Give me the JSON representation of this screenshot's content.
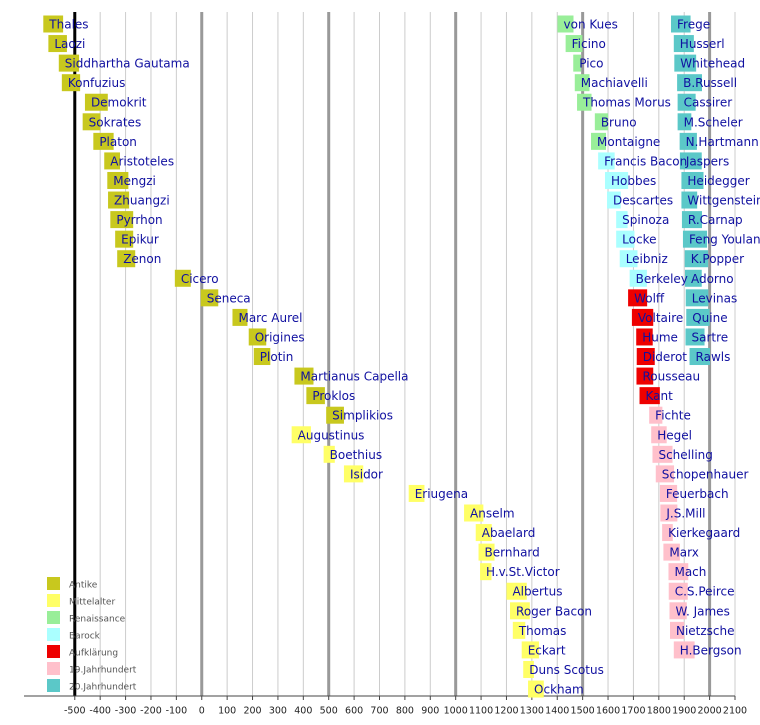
{
  "chart_data": {
    "type": "timeline",
    "xlim": [
      -700,
      2100
    ],
    "xticks": [
      -500,
      -400,
      -300,
      -200,
      -100,
      0,
      100,
      200,
      300,
      400,
      500,
      600,
      700,
      800,
      900,
      1000,
      1100,
      1200,
      1300,
      1400,
      1500,
      1600,
      1700,
      1800,
      1900,
      2000,
      2100
    ],
    "grid": true,
    "legend": "lower left",
    "eras": [
      {
        "name": "Antike",
        "color": "#c8c81e"
      },
      {
        "name": "Mittelalter",
        "color": "#ffff66"
      },
      {
        "name": "Renaissance",
        "color": "#99ee99"
      },
      {
        "name": "Barock",
        "color": "#aaffff"
      },
      {
        "name": "Aufklärung",
        "color": "#ee0000"
      },
      {
        "name": "19.Jahrhundert",
        "color": "#ffc0cb"
      },
      {
        "name": "20.Jahrhundert",
        "color": "#5bc8c8"
      }
    ],
    "rows": [
      [
        {
          "label": "Thales",
          "start": -624,
          "end": -546,
          "era": "Antike"
        },
        {
          "label": "von Kues",
          "start": 1401,
          "end": 1464,
          "era": "Renaissance"
        },
        {
          "label": "Frege",
          "start": 1848,
          "end": 1925,
          "era": "20.Jahrhundert"
        }
      ],
      [
        {
          "label": "Laozi",
          "start": -604,
          "end": -531,
          "era": "Antike"
        },
        {
          "label": "Ficino",
          "start": 1433,
          "end": 1499,
          "era": "Renaissance"
        },
        {
          "label": "Husserl",
          "start": 1859,
          "end": 1938,
          "era": "20.Jahrhundert"
        }
      ],
      [
        {
          "label": "Siddhartha Gautama",
          "start": -563,
          "end": -483,
          "era": "Antike"
        },
        {
          "label": "Pico",
          "start": 1463,
          "end": 1494,
          "era": "Renaissance"
        },
        {
          "label": "Whitehead",
          "start": 1861,
          "end": 1947,
          "era": "20.Jahrhundert"
        }
      ],
      [
        {
          "label": "Konfuzius",
          "start": -551,
          "end": -479,
          "era": "Antike"
        },
        {
          "label": "Machiavelli",
          "start": 1469,
          "end": 1527,
          "era": "Renaissance"
        },
        {
          "label": "B.Russell",
          "start": 1872,
          "end": 1970,
          "era": "20.Jahrhundert"
        }
      ],
      [
        {
          "label": "Demokrit",
          "start": -460,
          "end": -370,
          "era": "Antike"
        },
        {
          "label": "Thomas Morus",
          "start": 1478,
          "end": 1535,
          "era": "Renaissance"
        },
        {
          "label": "Cassirer",
          "start": 1874,
          "end": 1945,
          "era": "20.Jahrhundert"
        }
      ],
      [
        {
          "label": "Sokrates",
          "start": -469,
          "end": -399,
          "era": "Antike"
        },
        {
          "label": "Bruno",
          "start": 1548,
          "end": 1600,
          "era": "Renaissance"
        },
        {
          "label": "M.Scheler",
          "start": 1874,
          "end": 1928,
          "era": "20.Jahrhundert"
        }
      ],
      [
        {
          "label": "Platon",
          "start": -427,
          "end": -347,
          "era": "Antike"
        },
        {
          "label": "Montaigne",
          "start": 1533,
          "end": 1592,
          "era": "Renaissance"
        },
        {
          "label": "N.Hartmann",
          "start": 1882,
          "end": 1950,
          "era": "20.Jahrhundert"
        }
      ],
      [
        {
          "label": "Aristoteles",
          "start": -384,
          "end": -322,
          "era": "Antike"
        },
        {
          "label": "Francis Bacon",
          "start": 1561,
          "end": 1626,
          "era": "Barock"
        },
        {
          "label": "Jaspers",
          "start": 1883,
          "end": 1969,
          "era": "20.Jahrhundert"
        }
      ],
      [
        {
          "label": "Mengzi",
          "start": -372,
          "end": -289,
          "era": "Antike"
        },
        {
          "label": "Hobbes",
          "start": 1588,
          "end": 1679,
          "era": "Barock"
        },
        {
          "label": "Heidegger",
          "start": 1889,
          "end": 1976,
          "era": "20.Jahrhundert"
        }
      ],
      [
        {
          "label": "Zhuangzi",
          "start": -369,
          "end": -286,
          "era": "Antike"
        },
        {
          "label": "Descartes",
          "start": 1596,
          "end": 1650,
          "era": "Barock"
        },
        {
          "label": "Wittgenstein",
          "start": 1889,
          "end": 1951,
          "era": "20.Jahrhundert"
        }
      ],
      [
        {
          "label": "Pyrrhon",
          "start": -360,
          "end": -270,
          "era": "Antike"
        },
        {
          "label": "Spinoza",
          "start": 1632,
          "end": 1677,
          "era": "Barock"
        },
        {
          "label": "R.Carnap",
          "start": 1891,
          "end": 1970,
          "era": "20.Jahrhundert"
        }
      ],
      [
        {
          "label": "Epikur",
          "start": -341,
          "end": -270,
          "era": "Antike"
        },
        {
          "label": "Locke",
          "start": 1632,
          "end": 1704,
          "era": "Barock"
        },
        {
          "label": "Feng Youlan",
          "start": 1895,
          "end": 1990,
          "era": "20.Jahrhundert"
        }
      ],
      [
        {
          "label": "Zenon",
          "start": -333,
          "end": -262,
          "era": "Antike"
        },
        {
          "label": "Leibniz",
          "start": 1646,
          "end": 1716,
          "era": "Barock"
        },
        {
          "label": "K.Popper",
          "start": 1902,
          "end": 1994,
          "era": "20.Jahrhundert"
        }
      ],
      [
        {
          "label": "Cicero",
          "start": -106,
          "end": -43,
          "era": "Antike"
        },
        {
          "label": "Berkeley",
          "start": 1685,
          "end": 1753,
          "era": "Barock"
        },
        {
          "label": "Adorno",
          "start": 1903,
          "end": 1969,
          "era": "20.Jahrhundert"
        }
      ],
      [
        {
          "label": "Seneca",
          "start": -4,
          "end": 65,
          "era": "Antike"
        },
        {
          "label": "Wolff",
          "start": 1679,
          "end": 1754,
          "era": "Aufklärung"
        },
        {
          "label": "Levinas",
          "start": 1906,
          "end": 1995,
          "era": "20.Jahrhundert"
        }
      ],
      [
        {
          "label": "Marc Aurel",
          "start": 121,
          "end": 180,
          "era": "Antike"
        },
        {
          "label": "Voltaire",
          "start": 1694,
          "end": 1778,
          "era": "Aufklärung"
        },
        {
          "label": "Quine",
          "start": 1908,
          "end": 2000,
          "era": "20.Jahrhundert"
        }
      ],
      [
        {
          "label": "Origines",
          "start": 185,
          "end": 254,
          "era": "Antike"
        },
        {
          "label": "Hume",
          "start": 1711,
          "end": 1776,
          "era": "Aufklärung"
        },
        {
          "label": "Sartre",
          "start": 1905,
          "end": 1980,
          "era": "20.Jahrhundert"
        }
      ],
      [
        {
          "label": "Plotin",
          "start": 205,
          "end": 270,
          "era": "Antike"
        },
        {
          "label": "Diderot",
          "start": 1713,
          "end": 1784,
          "era": "Aufklärung"
        },
        {
          "label": "Rawls",
          "start": 1921,
          "end": 2002,
          "era": "20.Jahrhundert"
        }
      ],
      [
        {
          "label": "Martianus Capella",
          "start": 365,
          "end": 440,
          "era": "Antike"
        },
        {
          "label": "Rousseau",
          "start": 1712,
          "end": 1778,
          "era": "Aufklärung"
        }
      ],
      [
        {
          "label": "Proklos",
          "start": 412,
          "end": 485,
          "era": "Antike"
        },
        {
          "label": "Kant",
          "start": 1724,
          "end": 1804,
          "era": "Aufklärung"
        }
      ],
      [
        {
          "label": "Simplikios",
          "start": 490,
          "end": 560,
          "era": "Antike"
        },
        {
          "label": "Fichte",
          "start": 1762,
          "end": 1814,
          "era": "19.Jahrhundert"
        }
      ],
      [
        {
          "label": "Augustinus",
          "start": 354,
          "end": 430,
          "era": "Mittelalter"
        },
        {
          "label": "Hegel",
          "start": 1770,
          "end": 1831,
          "era": "19.Jahrhundert"
        }
      ],
      [
        {
          "label": "Boethius",
          "start": 480,
          "end": 524,
          "era": "Mittelalter"
        },
        {
          "label": "Schelling",
          "start": 1775,
          "end": 1854,
          "era": "19.Jahrhundert"
        }
      ],
      [
        {
          "label": "Isidor",
          "start": 560,
          "end": 636,
          "era": "Mittelalter"
        },
        {
          "label": "Schopenhauer",
          "start": 1788,
          "end": 1860,
          "era": "19.Jahrhundert"
        }
      ],
      [
        {
          "label": "Eriugena",
          "start": 815,
          "end": 877,
          "era": "Mittelalter"
        },
        {
          "label": "Feuerbach",
          "start": 1804,
          "end": 1872,
          "era": "19.Jahrhundert"
        }
      ],
      [
        {
          "label": "Anselm",
          "start": 1033,
          "end": 1109,
          "era": "Mittelalter"
        },
        {
          "label": "J.S.Mill",
          "start": 1806,
          "end": 1873,
          "era": "19.Jahrhundert"
        }
      ],
      [
        {
          "label": "Abaelard",
          "start": 1079,
          "end": 1142,
          "era": "Mittelalter"
        },
        {
          "label": "Kierkegaard",
          "start": 1813,
          "end": 1855,
          "era": "19.Jahrhundert"
        }
      ],
      [
        {
          "label": "Bernhard",
          "start": 1090,
          "end": 1153,
          "era": "Mittelalter"
        },
        {
          "label": "Marx",
          "start": 1818,
          "end": 1883,
          "era": "19.Jahrhundert"
        }
      ],
      [
        {
          "label": "H.v.St.Victor",
          "start": 1096,
          "end": 1141,
          "era": "Mittelalter"
        },
        {
          "label": "Mach",
          "start": 1838,
          "end": 1916,
          "era": "19.Jahrhundert"
        }
      ],
      [
        {
          "label": "Albertus",
          "start": 1200,
          "end": 1280,
          "era": "Mittelalter"
        },
        {
          "label": "C.S.Peirce",
          "start": 1839,
          "end": 1914,
          "era": "19.Jahrhundert"
        }
      ],
      [
        {
          "label": "Roger Bacon",
          "start": 1214,
          "end": 1292,
          "era": "Mittelalter"
        },
        {
          "label": "W. James",
          "start": 1842,
          "end": 1910,
          "era": "19.Jahrhundert"
        }
      ],
      [
        {
          "label": "Thomas",
          "start": 1225,
          "end": 1274,
          "era": "Mittelalter"
        },
        {
          "label": "Nietzsche",
          "start": 1844,
          "end": 1900,
          "era": "19.Jahrhundert"
        }
      ],
      [
        {
          "label": "Eckart",
          "start": 1260,
          "end": 1328,
          "era": "Mittelalter"
        },
        {
          "label": "H.Bergson",
          "start": 1859,
          "end": 1941,
          "era": "19.Jahrhundert"
        }
      ],
      [
        {
          "label": "Duns Scotus",
          "start": 1266,
          "end": 1308,
          "era": "Mittelalter"
        }
      ],
      [
        {
          "label": "Ockham",
          "start": 1285,
          "end": 1347,
          "era": "Mittelalter"
        }
      ]
    ]
  }
}
